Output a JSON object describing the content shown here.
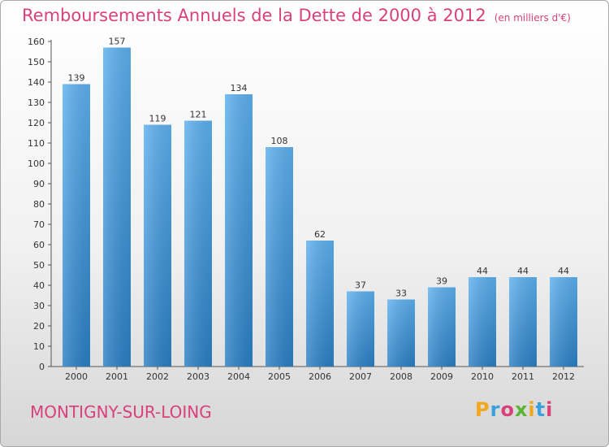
{
  "chart_data": {
    "type": "bar",
    "title": "Remboursements Annuels de la Dette de 2000 à 2012",
    "unit_label": "(en milliers d'€)",
    "categories": [
      "2000",
      "2001",
      "2002",
      "2003",
      "2004",
      "2005",
      "2006",
      "2007",
      "2008",
      "2009",
      "2010",
      "2011",
      "2012"
    ],
    "values": [
      139,
      157,
      119,
      121,
      134,
      108,
      62,
      37,
      33,
      39,
      44,
      44,
      44
    ],
    "ylim": [
      0,
      160
    ],
    "ytick_step": 10,
    "xlabel": "",
    "ylabel": "",
    "grid": false,
    "bar_color": "#4a9ee0"
  },
  "commune": "MONTIGNY-SUR-LOING",
  "logo": {
    "letters": [
      "P",
      "r",
      "o",
      "x",
      "i",
      "t",
      "i"
    ],
    "colors": [
      "#f2a81d",
      "#3aa0dc",
      "#d9417a",
      "#5bb534",
      "#f2a81d",
      "#3aa0dc",
      "#d9417a"
    ]
  }
}
